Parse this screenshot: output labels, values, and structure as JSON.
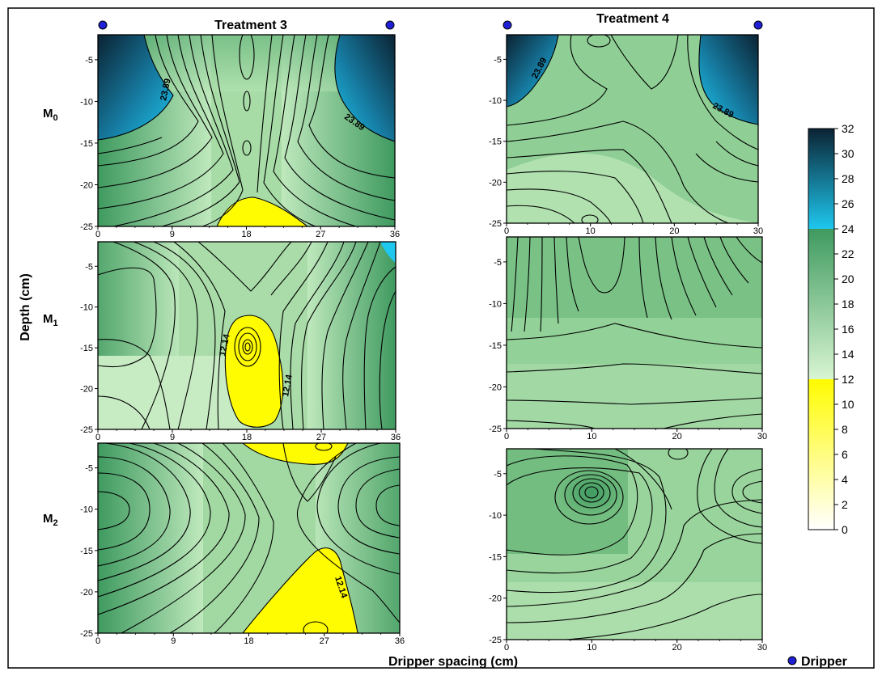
{
  "figure": {
    "treatment3_title": "Treatment 3",
    "treatment4_title": "Treatment 4",
    "row_labels": [
      {
        "main": "M",
        "sub": "0"
      },
      {
        "main": "M",
        "sub": "1"
      },
      {
        "main": "M",
        "sub": "2"
      }
    ],
    "ylabel": "Depth (cm)",
    "xlabel": "Dripper spacing (cm)",
    "legend_label": "Dripper",
    "dripper_color": "#1f1fd6"
  },
  "chart_data": {
    "type": "heatmap",
    "description_units": "contour map of depth (cm) vs dripper spacing (cm)",
    "colorbar": {
      "ticks": [
        "0",
        "2",
        "4",
        "6",
        "8",
        "10",
        "12",
        "14",
        "16",
        "18",
        "20",
        "22",
        "24",
        "26",
        "28",
        "30",
        "32"
      ],
      "range": [
        0,
        32
      ],
      "bands": [
        {
          "from": 0,
          "to": 12,
          "colors": [
            "#ffffff",
            "#fffb00"
          ]
        },
        {
          "from": 12,
          "to": 24,
          "colors": [
            "#d8f5d2",
            "#3f9a60"
          ]
        },
        {
          "from": 24,
          "to": 32,
          "colors": [
            "#1ec7ee",
            "#0b2333"
          ]
        }
      ]
    },
    "panels": [
      {
        "treatment": "Treatment 3",
        "row": "M0",
        "x_ticks": [
          "0",
          "9",
          "18",
          "27",
          "36"
        ],
        "xlim": [
          0,
          36
        ],
        "y_ticks": [
          "-5",
          "-10",
          "-15",
          "-20",
          "-25"
        ],
        "ylim": [
          -25,
          -2
        ],
        "contour_labels": [
          "23.89",
          "23.89"
        ]
      },
      {
        "treatment": "Treatment 4",
        "row": "M0",
        "x_ticks": [
          "0",
          "10",
          "20",
          "30"
        ],
        "xlim": [
          0,
          30
        ],
        "y_ticks": [
          "-5",
          "-10",
          "-15",
          "-20",
          "-25"
        ],
        "ylim": [
          -25,
          -2
        ],
        "contour_labels": [
          "23.89",
          "23.89"
        ]
      },
      {
        "treatment": "Treatment 3",
        "row": "M1",
        "x_ticks": [
          "0",
          "9",
          "18",
          "27",
          "36"
        ],
        "xlim": [
          0,
          36
        ],
        "y_ticks": [
          "-5",
          "-10",
          "-15",
          "-20",
          "-25"
        ],
        "ylim": [
          -25,
          -2
        ],
        "contour_labels": [
          "12.14",
          "12.14"
        ]
      },
      {
        "treatment": "Treatment 4",
        "row": "M1",
        "x_ticks": [
          "0",
          "10",
          "20",
          "30"
        ],
        "xlim": [
          0,
          30
        ],
        "y_ticks": [
          "-5",
          "-10",
          "-15",
          "-20",
          "-25"
        ],
        "ylim": [
          -25,
          -2
        ],
        "contour_labels": []
      },
      {
        "treatment": "Treatment 3",
        "row": "M2",
        "x_ticks": [
          "0",
          "9",
          "18",
          "27",
          "36"
        ],
        "xlim": [
          0,
          36
        ],
        "y_ticks": [
          "-5",
          "-10",
          "-15",
          "-20",
          "-25"
        ],
        "ylim": [
          -25,
          -2
        ],
        "contour_labels": [
          "12.14"
        ]
      },
      {
        "treatment": "Treatment 4",
        "row": "M2",
        "x_ticks": [
          "0",
          "10",
          "20",
          "30"
        ],
        "xlim": [
          0,
          30
        ],
        "y_ticks": [
          "-5",
          "-10",
          "-15",
          "-20",
          "-25"
        ],
        "ylim": [
          -25,
          -2
        ],
        "contour_labels": []
      }
    ]
  }
}
